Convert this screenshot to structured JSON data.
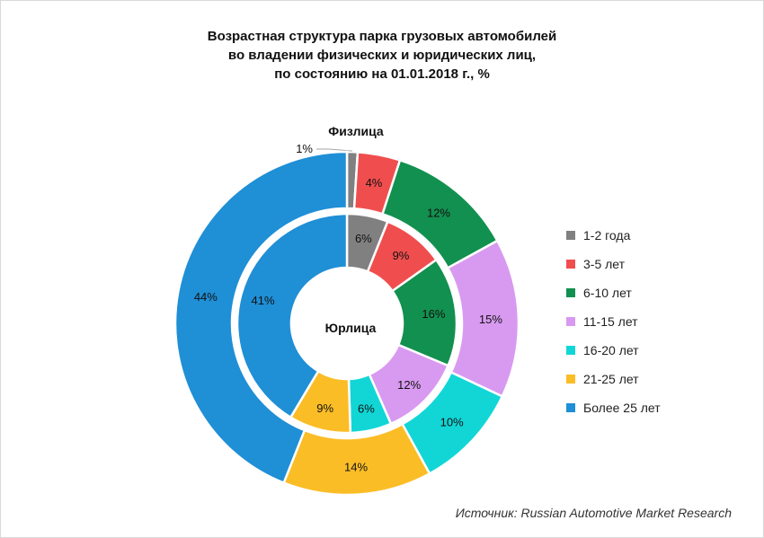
{
  "chart_data": {
    "type": "pie",
    "subtype": "nested-donut",
    "title_lines": [
      "Возрастная структура парка грузовых автомобилей",
      "во владении физических и юридических лиц,",
      "по состоянию на 01.01.2018 г., %"
    ],
    "categories": [
      "1-2 года",
      "3-5 лет",
      "6-10 лет",
      "11-15 лет",
      "16-20 лет",
      "21-25 лет",
      "Более 25 лет"
    ],
    "colors": [
      "#808080",
      "#f04e4e",
      "#12904f",
      "#d89af0",
      "#12d6d6",
      "#fbbd26",
      "#1f8fd6"
    ],
    "series": [
      {
        "name": "Физлица",
        "ring": "outer",
        "values": [
          1,
          4,
          12,
          15,
          10,
          14,
          44
        ]
      },
      {
        "name": "Юрлица",
        "ring": "inner",
        "values": [
          6,
          9,
          16,
          12,
          6,
          9,
          41
        ]
      }
    ],
    "legend_position": "right"
  },
  "source": "Источник: Russian Automotive Market Research"
}
